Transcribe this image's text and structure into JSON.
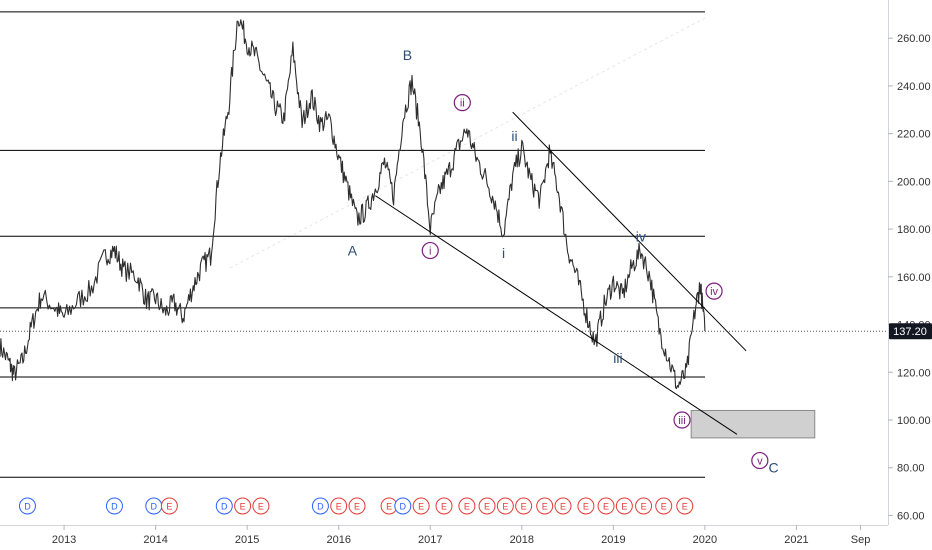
{
  "chart_data": {
    "type": "line",
    "x_ticks": [
      "2013",
      "2014",
      "2015",
      "2016",
      "2017",
      "2018",
      "2019",
      "2020",
      "2021",
      "Sep"
    ],
    "y_ticks": [
      "260.00",
      "240.00",
      "220.00",
      "200.00",
      "180.00",
      "160.00",
      "140.00",
      "120.00",
      "100.00",
      "80.00",
      "60.00"
    ],
    "ylim": [
      56,
      276
    ],
    "last_price_label": "137.20",
    "colors": {
      "price": "#2e2e2e",
      "horizontal_level": "#000000",
      "trendline": "#000000",
      "box": "#c8c8c8",
      "wave_blue": "#2b4d7a",
      "wave_purple": "#7b1f7e",
      "dividend": "#2962ff",
      "earnings": "#e53935",
      "last_price_bg": "#131722"
    },
    "x_domain": [
      2012.3,
      2022.0
    ],
    "series": [
      {
        "values": [
          [
            2012.3,
            131
          ],
          [
            2012.4,
            124
          ],
          [
            2012.45,
            119
          ],
          [
            2012.55,
            125
          ],
          [
            2012.65,
            140
          ],
          [
            2012.75,
            152
          ],
          [
            2012.9,
            147
          ],
          [
            2013.0,
            143
          ],
          [
            2013.15,
            150
          ],
          [
            2013.3,
            155
          ],
          [
            2013.45,
            169
          ],
          [
            2013.55,
            171
          ],
          [
            2013.65,
            163
          ],
          [
            2013.8,
            160
          ],
          [
            2013.9,
            150
          ],
          [
            2014.0,
            151
          ],
          [
            2014.1,
            145
          ],
          [
            2014.2,
            149
          ],
          [
            2014.3,
            143
          ],
          [
            2014.4,
            155
          ],
          [
            2014.5,
            164
          ],
          [
            2014.6,
            169
          ],
          [
            2014.7,
            208
          ],
          [
            2014.8,
            232
          ],
          [
            2014.9,
            270
          ],
          [
            2015.0,
            258
          ],
          [
            2015.1,
            252
          ],
          [
            2015.2,
            242
          ],
          [
            2015.3,
            232
          ],
          [
            2015.4,
            226
          ],
          [
            2015.5,
            255
          ],
          [
            2015.6,
            224
          ],
          [
            2015.7,
            236
          ],
          [
            2015.8,
            224
          ],
          [
            2015.9,
            226
          ],
          [
            2016.0,
            210
          ],
          [
            2016.1,
            197
          ],
          [
            2016.2,
            184
          ],
          [
            2016.3,
            188
          ],
          [
            2016.4,
            197
          ],
          [
            2016.5,
            208
          ],
          [
            2016.6,
            194
          ],
          [
            2016.7,
            226
          ],
          [
            2016.8,
            242
          ],
          [
            2016.9,
            219
          ],
          [
            2017.0,
            180
          ],
          [
            2017.1,
            196
          ],
          [
            2017.2,
            204
          ],
          [
            2017.3,
            214
          ],
          [
            2017.4,
            222
          ],
          [
            2017.5,
            210
          ],
          [
            2017.6,
            202
          ],
          [
            2017.7,
            192
          ],
          [
            2017.8,
            178
          ],
          [
            2017.9,
            202
          ],
          [
            2018.0,
            214
          ],
          [
            2018.1,
            200
          ],
          [
            2018.2,
            192
          ],
          [
            2018.3,
            212
          ],
          [
            2018.4,
            196
          ],
          [
            2018.5,
            172
          ],
          [
            2018.6,
            160
          ],
          [
            2018.7,
            145
          ],
          [
            2018.8,
            132
          ],
          [
            2018.9,
            148
          ],
          [
            2019.0,
            158
          ],
          [
            2019.1,
            152
          ],
          [
            2019.2,
            164
          ],
          [
            2019.3,
            171
          ],
          [
            2019.4,
            160
          ],
          [
            2019.5,
            138
          ],
          [
            2019.6,
            126
          ],
          [
            2019.7,
            114
          ],
          [
            2019.8,
            120
          ],
          [
            2019.9,
            148
          ],
          [
            2019.95,
            157
          ],
          [
            2020.0,
            137.2
          ]
        ]
      }
    ],
    "horizontal_levels": [
      271,
      213,
      177,
      147,
      118,
      76
    ],
    "trendlines": [
      {
        "from": [
          2016.4,
          194
        ],
        "to": [
          2020.35,
          94
        ]
      },
      {
        "from": [
          2017.9,
          229
        ],
        "to": [
          2020.45,
          129
        ]
      }
    ],
    "target_zone": {
      "x": [
        2019.85,
        2021.2
      ],
      "y": [
        92.5,
        104
      ]
    },
    "wave_labels": [
      {
        "text": "A",
        "x": 2016.15,
        "y": 171,
        "style": "blue"
      },
      {
        "text": "B",
        "x": 2016.75,
        "y": 253,
        "style": "blue"
      },
      {
        "text": "ii",
        "x": 2017.92,
        "y": 219,
        "style": "blue"
      },
      {
        "text": "i",
        "x": 2017.8,
        "y": 170,
        "style": "blue"
      },
      {
        "text": "iii",
        "x": 2019.05,
        "y": 126,
        "style": "blue"
      },
      {
        "text": "iv",
        "x": 2019.3,
        "y": 177,
        "style": "blue"
      },
      {
        "text": "i",
        "x": 2017.0,
        "y": 171,
        "style": "purple"
      },
      {
        "text": "ii",
        "x": 2017.35,
        "y": 233,
        "style": "purple"
      },
      {
        "text": "iii",
        "x": 2019.75,
        "y": 100,
        "style": "purple"
      },
      {
        "text": "iv",
        "x": 2020.1,
        "y": 154,
        "style": "purple"
      },
      {
        "text": "v",
        "x": 2020.6,
        "y": 83,
        "style": "purple"
      },
      {
        "text": "C",
        "x": 2020.75,
        "y": 80,
        "style": "blue"
      }
    ],
    "events": [
      {
        "type": "D",
        "x": 2012.6
      },
      {
        "type": "D",
        "x": 2013.55
      },
      {
        "type": "D",
        "x": 2013.98
      },
      {
        "type": "E",
        "x": 2014.15
      },
      {
        "type": "D",
        "x": 2014.75
      },
      {
        "type": "E",
        "x": 2014.95
      },
      {
        "type": "E",
        "x": 2015.15
      },
      {
        "type": "D",
        "x": 2015.8
      },
      {
        "type": "E",
        "x": 2016.0
      },
      {
        "type": "E",
        "x": 2016.2
      },
      {
        "type": "E",
        "x": 2016.55
      },
      {
        "type": "D",
        "x": 2016.7
      },
      {
        "type": "E",
        "x": 2016.9
      },
      {
        "type": "E",
        "x": 2017.15
      },
      {
        "type": "E",
        "x": 2017.4
      },
      {
        "type": "E",
        "x": 2017.62
      },
      {
        "type": "E",
        "x": 2017.82
      },
      {
        "type": "E",
        "x": 2018.02
      },
      {
        "type": "E",
        "x": 2018.25
      },
      {
        "type": "E",
        "x": 2018.45
      },
      {
        "type": "E",
        "x": 2018.7
      },
      {
        "type": "E",
        "x": 2018.92
      },
      {
        "type": "E",
        "x": 2019.12
      },
      {
        "type": "E",
        "x": 2019.33
      },
      {
        "type": "E",
        "x": 2019.55
      },
      {
        "type": "E",
        "x": 2019.78
      }
    ]
  }
}
